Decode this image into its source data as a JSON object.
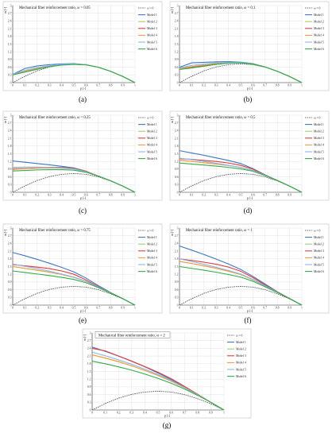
{
  "chart_data": [
    {
      "type": "line",
      "title": "Mechanical fiber reinforcement ratio, ω = 0.05",
      "caption": "(a)",
      "xlabel": "p [-]",
      "ylabel": "m [-]",
      "xlim": [
        0,
        1
      ],
      "ylim": [
        0,
        3
      ],
      "x_ticks": [
        0,
        0.1,
        0.2,
        0.3,
        0.4,
        0.5,
        0.6,
        0.7,
        0.8,
        0.9,
        1
      ],
      "y_ticks": [
        0,
        0.3,
        0.6,
        0.9,
        1.2,
        1.5,
        1.8,
        2.1,
        2.4,
        2.7,
        3
      ],
      "grid": true,
      "legend_position": "right",
      "x": [
        0,
        0.1,
        0.2,
        0.3,
        0.4,
        0.5,
        0.6,
        0.7,
        0.8,
        0.9,
        1
      ],
      "series": [
        {
          "name": "ω = 0",
          "values": [
            0,
            0.25,
            0.46,
            0.61,
            0.7,
            0.73,
            0.7,
            0.6,
            0.44,
            0.24,
            0
          ]
        },
        {
          "name": "Model 1",
          "values": [
            0.32,
            0.55,
            0.65,
            0.7,
            0.73,
            0.74,
            0.7,
            0.6,
            0.44,
            0.24,
            0
          ]
        },
        {
          "name": "Model 2",
          "values": [
            0.32,
            0.44,
            0.55,
            0.64,
            0.7,
            0.72,
            0.7,
            0.6,
            0.44,
            0.24,
            0
          ]
        },
        {
          "name": "Model 3",
          "values": [
            0.32,
            0.42,
            0.53,
            0.63,
            0.69,
            0.72,
            0.7,
            0.6,
            0.44,
            0.24,
            0
          ]
        },
        {
          "name": "Model 4",
          "values": [
            0.32,
            0.44,
            0.55,
            0.64,
            0.7,
            0.72,
            0.7,
            0.6,
            0.44,
            0.24,
            0
          ]
        },
        {
          "name": "Model 5",
          "values": [
            0.32,
            0.48,
            0.59,
            0.66,
            0.71,
            0.73,
            0.7,
            0.6,
            0.44,
            0.24,
            0
          ]
        },
        {
          "name": "Model 6",
          "values": [
            0.3,
            0.41,
            0.52,
            0.62,
            0.68,
            0.71,
            0.69,
            0.6,
            0.44,
            0.24,
            0
          ]
        }
      ]
    },
    {
      "type": "line",
      "title": "Mechanical fiber reinforcement ratio, ω = 0.1",
      "caption": "(b)",
      "xlabel": "p [-]",
      "ylabel": "m [-]",
      "xlim": [
        0,
        1
      ],
      "ylim": [
        0,
        3
      ],
      "x_ticks": [
        0,
        0.1,
        0.2,
        0.3,
        0.4,
        0.5,
        0.6,
        0.7,
        0.8,
        0.9,
        1
      ],
      "y_ticks": [
        0,
        0.3,
        0.6,
        0.9,
        1.2,
        1.5,
        1.8,
        2.1,
        2.4,
        2.7,
        3
      ],
      "grid": true,
      "legend_position": "right",
      "x": [
        0,
        0.1,
        0.2,
        0.3,
        0.4,
        0.5,
        0.6,
        0.7,
        0.8,
        0.9,
        1
      ],
      "series": [
        {
          "name": "ω = 0",
          "values": [
            0,
            0.25,
            0.46,
            0.61,
            0.7,
            0.73,
            0.7,
            0.6,
            0.44,
            0.24,
            0
          ]
        },
        {
          "name": "Model 1",
          "values": [
            0.6,
            0.77,
            0.79,
            0.81,
            0.82,
            0.8,
            0.74,
            0.61,
            0.44,
            0.24,
            0
          ]
        },
        {
          "name": "Model 2",
          "values": [
            0.55,
            0.62,
            0.68,
            0.74,
            0.78,
            0.78,
            0.73,
            0.61,
            0.44,
            0.24,
            0
          ]
        },
        {
          "name": "Model 3",
          "values": [
            0.55,
            0.6,
            0.66,
            0.73,
            0.77,
            0.78,
            0.73,
            0.61,
            0.44,
            0.24,
            0
          ]
        },
        {
          "name": "Model 4",
          "values": [
            0.55,
            0.62,
            0.68,
            0.74,
            0.78,
            0.78,
            0.73,
            0.61,
            0.44,
            0.24,
            0
          ]
        },
        {
          "name": "Model 5",
          "values": [
            0.57,
            0.67,
            0.72,
            0.77,
            0.79,
            0.79,
            0.73,
            0.61,
            0.44,
            0.24,
            0
          ]
        },
        {
          "name": "Model 6",
          "values": [
            0.51,
            0.57,
            0.64,
            0.71,
            0.76,
            0.77,
            0.72,
            0.61,
            0.44,
            0.24,
            0
          ]
        }
      ]
    },
    {
      "type": "line",
      "title": "Mechanical fiber reinforcement ratio, ω = 0.25",
      "caption": "(c)",
      "xlabel": "p [-]",
      "ylabel": "m [-]",
      "xlim": [
        0,
        1
      ],
      "ylim": [
        0,
        3
      ],
      "x_ticks": [
        0,
        0.1,
        0.2,
        0.3,
        0.4,
        0.5,
        0.6,
        0.7,
        0.8,
        0.9,
        1
      ],
      "y_ticks": [
        0,
        0.3,
        0.6,
        0.9,
        1.2,
        1.5,
        1.8,
        2.1,
        2.4,
        2.7,
        3
      ],
      "grid": true,
      "legend_position": "right",
      "x": [
        0,
        0.1,
        0.2,
        0.3,
        0.4,
        0.5,
        0.6,
        0.7,
        0.8,
        0.9,
        1
      ],
      "series": [
        {
          "name": "ω = 0",
          "values": [
            0,
            0.25,
            0.46,
            0.61,
            0.7,
            0.73,
            0.7,
            0.6,
            0.44,
            0.24,
            0
          ]
        },
        {
          "name": "Model 1",
          "values": [
            1.22,
            1.17,
            1.12,
            1.07,
            1.01,
            0.95,
            0.82,
            0.63,
            0.45,
            0.24,
            0
          ]
        },
        {
          "name": "Model 2",
          "values": [
            0.92,
            0.93,
            0.94,
            0.95,
            0.94,
            0.91,
            0.8,
            0.63,
            0.45,
            0.24,
            0
          ]
        },
        {
          "name": "Model 3",
          "values": [
            0.9,
            0.92,
            0.95,
            0.97,
            0.97,
            0.93,
            0.82,
            0.63,
            0.45,
            0.24,
            0
          ]
        },
        {
          "name": "Model 4",
          "values": [
            0.92,
            0.93,
            0.94,
            0.95,
            0.94,
            0.91,
            0.8,
            0.63,
            0.45,
            0.24,
            0
          ]
        },
        {
          "name": "Model 5",
          "values": [
            0.97,
            0.98,
            0.98,
            0.97,
            0.95,
            0.91,
            0.8,
            0.63,
            0.45,
            0.24,
            0
          ]
        },
        {
          "name": "Model 6",
          "values": [
            0.83,
            0.85,
            0.87,
            0.88,
            0.88,
            0.86,
            0.78,
            0.63,
            0.45,
            0.24,
            0
          ]
        }
      ]
    },
    {
      "type": "line",
      "title": "Mechanical fiber reinforcement ratio, ω = 0.5",
      "caption": "(d)",
      "xlabel": "p [-]",
      "ylabel": "m [-]",
      "xlim": [
        0,
        1
      ],
      "ylim": [
        0,
        3
      ],
      "x_ticks": [
        0,
        0.1,
        0.2,
        0.3,
        0.4,
        0.5,
        0.6,
        0.7,
        0.8,
        0.9,
        1
      ],
      "y_ticks": [
        0,
        0.3,
        0.6,
        0.9,
        1.2,
        1.5,
        1.8,
        2.1,
        2.4,
        2.7,
        3
      ],
      "grid": true,
      "legend_position": "right",
      "x": [
        0,
        0.1,
        0.2,
        0.3,
        0.4,
        0.5,
        0.6,
        0.7,
        0.8,
        0.9,
        1
      ],
      "series": [
        {
          "name": "ω = 0",
          "values": [
            0,
            0.25,
            0.46,
            0.61,
            0.7,
            0.73,
            0.7,
            0.6,
            0.44,
            0.24,
            0
          ]
        },
        {
          "name": "Model 1",
          "values": [
            1.62,
            1.53,
            1.44,
            1.34,
            1.24,
            1.12,
            0.92,
            0.68,
            0.46,
            0.24,
            0
          ]
        },
        {
          "name": "Model 2",
          "values": [
            1.25,
            1.2,
            1.15,
            1.1,
            1.04,
            0.97,
            0.85,
            0.66,
            0.46,
            0.24,
            0
          ]
        },
        {
          "name": "Model 3",
          "values": [
            1.31,
            1.28,
            1.24,
            1.2,
            1.14,
            1.05,
            0.9,
            0.67,
            0.46,
            0.24,
            0
          ]
        },
        {
          "name": "Model 4",
          "values": [
            1.25,
            1.2,
            1.15,
            1.1,
            1.04,
            0.97,
            0.85,
            0.66,
            0.46,
            0.24,
            0
          ]
        },
        {
          "name": "Model 5",
          "values": [
            1.33,
            1.27,
            1.2,
            1.13,
            1.05,
            0.97,
            0.85,
            0.66,
            0.46,
            0.24,
            0
          ]
        },
        {
          "name": "Model 6",
          "values": [
            1.14,
            1.1,
            1.06,
            1.02,
            0.97,
            0.91,
            0.82,
            0.65,
            0.46,
            0.24,
            0
          ]
        }
      ]
    },
    {
      "type": "line",
      "title": "Mechanical fiber reinforcement ratio, ω = 0.75",
      "caption": "(e)",
      "xlabel": "p [-]",
      "ylabel": "m [-]",
      "xlim": [
        0,
        1
      ],
      "ylim": [
        0,
        3
      ],
      "x_ticks": [
        0,
        0.1,
        0.2,
        0.3,
        0.4,
        0.5,
        0.6,
        0.7,
        0.8,
        0.9,
        1
      ],
      "y_ticks": [
        0,
        0.3,
        0.6,
        0.9,
        1.2,
        1.5,
        1.8,
        2.1,
        2.4,
        2.7,
        3
      ],
      "grid": true,
      "legend_position": "right",
      "x": [
        0,
        0.1,
        0.2,
        0.3,
        0.4,
        0.5,
        0.6,
        0.7,
        0.8,
        0.9,
        1
      ],
      "series": [
        {
          "name": "ω = 0",
          "values": [
            0,
            0.25,
            0.46,
            0.61,
            0.7,
            0.73,
            0.7,
            0.6,
            0.44,
            0.24,
            0
          ]
        },
        {
          "name": "Model 1",
          "values": [
            2.05,
            1.92,
            1.78,
            1.63,
            1.47,
            1.29,
            1.05,
            0.76,
            0.49,
            0.25,
            0
          ]
        },
        {
          "name": "Model 2",
          "values": [
            1.5,
            1.43,
            1.36,
            1.28,
            1.19,
            1.08,
            0.92,
            0.7,
            0.48,
            0.25,
            0
          ]
        },
        {
          "name": "Model 3",
          "values": [
            1.58,
            1.53,
            1.48,
            1.42,
            1.33,
            1.2,
            0.98,
            0.72,
            0.48,
            0.25,
            0
          ]
        },
        {
          "name": "Model 4",
          "values": [
            1.5,
            1.43,
            1.36,
            1.28,
            1.19,
            1.08,
            0.92,
            0.7,
            0.48,
            0.25,
            0
          ]
        },
        {
          "name": "Model 5",
          "values": [
            1.6,
            1.51,
            1.42,
            1.32,
            1.21,
            1.09,
            0.93,
            0.7,
            0.48,
            0.25,
            0
          ]
        },
        {
          "name": "Model 6",
          "values": [
            1.33,
            1.27,
            1.21,
            1.15,
            1.08,
            1.0,
            0.87,
            0.68,
            0.47,
            0.25,
            0
          ]
        }
      ]
    },
    {
      "type": "line",
      "title": "Mechanical fiber reinforcement ratio, ω = 1",
      "caption": "(f)",
      "xlabel": "p [-]",
      "ylabel": "m [-]",
      "xlim": [
        0,
        1
      ],
      "ylim": [
        0,
        3
      ],
      "x_ticks": [
        0,
        0.1,
        0.2,
        0.3,
        0.4,
        0.5,
        0.6,
        0.7,
        0.8,
        0.9,
        1
      ],
      "y_ticks": [
        0,
        0.3,
        0.6,
        0.9,
        1.2,
        1.5,
        1.8,
        2.1,
        2.4,
        2.7,
        3
      ],
      "grid": true,
      "legend_position": "right",
      "x": [
        0,
        0.1,
        0.2,
        0.3,
        0.4,
        0.5,
        0.6,
        0.7,
        0.8,
        0.9,
        1
      ],
      "series": [
        {
          "name": "ω = 0",
          "values": [
            0,
            0.25,
            0.46,
            0.61,
            0.7,
            0.73,
            0.7,
            0.6,
            0.44,
            0.24,
            0
          ]
        },
        {
          "name": "Model 1",
          "values": [
            2.3,
            2.14,
            1.97,
            1.79,
            1.6,
            1.39,
            1.12,
            0.82,
            0.52,
            0.26,
            0
          ]
        },
        {
          "name": "Model 2",
          "values": [
            1.7,
            1.62,
            1.53,
            1.43,
            1.32,
            1.19,
            0.99,
            0.74,
            0.5,
            0.25,
            0
          ]
        },
        {
          "name": "Model 3",
          "values": [
            1.8,
            1.74,
            1.67,
            1.59,
            1.48,
            1.32,
            1.07,
            0.78,
            0.51,
            0.26,
            0
          ]
        },
        {
          "name": "Model 4",
          "values": [
            1.7,
            1.62,
            1.53,
            1.43,
            1.32,
            1.19,
            0.99,
            0.74,
            0.5,
            0.25,
            0
          ]
        },
        {
          "name": "Model 5",
          "values": [
            1.8,
            1.7,
            1.59,
            1.47,
            1.35,
            1.21,
            1.0,
            0.75,
            0.5,
            0.25,
            0
          ]
        },
        {
          "name": "Model 6",
          "values": [
            1.5,
            1.43,
            1.36,
            1.28,
            1.19,
            1.09,
            0.93,
            0.71,
            0.49,
            0.25,
            0
          ]
        }
      ]
    },
    {
      "type": "line",
      "title": "Mechanical fiber reinforcement ratio, ω = 2",
      "caption": "(g)",
      "xlabel": "p [-]",
      "ylabel": "m [-]",
      "xlim": [
        0,
        1
      ],
      "ylim": [
        0,
        3
      ],
      "x_ticks": [
        0,
        0.1,
        0.2,
        0.3,
        0.4,
        0.5,
        0.6,
        0.7,
        0.8,
        0.9,
        1
      ],
      "y_ticks": [
        0,
        0.3,
        0.6,
        0.9,
        1.2,
        1.5,
        1.8,
        2.1,
        2.4,
        2.7,
        3
      ],
      "grid": true,
      "legend_position": "right",
      "x": [
        0,
        0.1,
        0.2,
        0.3,
        0.4,
        0.5,
        0.6,
        0.7,
        0.8,
        0.9,
        1
      ],
      "series": [
        {
          "name": "ω = 0",
          "values": [
            0,
            0.25,
            0.46,
            0.61,
            0.7,
            0.73,
            0.7,
            0.6,
            0.44,
            0.24,
            0
          ]
        },
        {
          "name": "Model 1",
          "values": [
            2.45,
            2.28,
            2.1,
            1.9,
            1.68,
            1.44,
            1.18,
            0.9,
            0.6,
            0.3,
            0
          ]
        },
        {
          "name": "Model 2",
          "values": [
            2.15,
            2.02,
            1.88,
            1.72,
            1.54,
            1.34,
            1.12,
            0.87,
            0.59,
            0.3,
            0
          ]
        },
        {
          "name": "Model 3",
          "values": [
            2.4,
            2.3,
            2.1,
            1.9,
            1.69,
            1.47,
            1.22,
            0.92,
            0.61,
            0.3,
            0
          ]
        },
        {
          "name": "Model 4",
          "values": [
            2.15,
            2.02,
            1.88,
            1.72,
            1.54,
            1.34,
            1.12,
            0.87,
            0.59,
            0.3,
            0
          ]
        },
        {
          "name": "Model 5",
          "values": [
            2.25,
            2.11,
            1.95,
            1.78,
            1.59,
            1.38,
            1.15,
            0.88,
            0.59,
            0.3,
            0
          ]
        },
        {
          "name": "Model 6",
          "values": [
            1.9,
            1.8,
            1.68,
            1.55,
            1.4,
            1.23,
            1.04,
            0.82,
            0.57,
            0.3,
            0
          ]
        }
      ]
    }
  ],
  "series_colors": {
    "ω = 0": "#444444",
    "Model 1": "#3a78c2",
    "Model 2": "#9ad06a",
    "Model 3": "#e03a3a",
    "Model 4": "#f39a3c",
    "Model 5": "#8ab6e8",
    "Model 6": "#2eae4a"
  },
  "series_dashed": [
    "ω = 0"
  ]
}
